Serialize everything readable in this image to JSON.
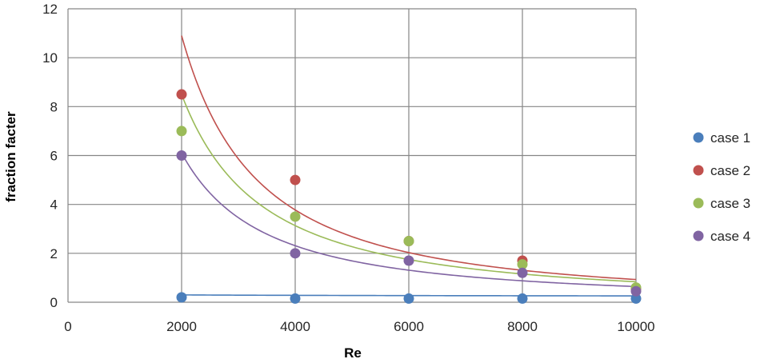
{
  "chart_data": {
    "type": "scatter",
    "title": "",
    "xlabel": "Re",
    "ylabel": "fraction facter",
    "xlim": [
      0,
      10000
    ],
    "ylim": [
      0,
      12
    ],
    "x_ticks": [
      "0",
      "2000",
      "4000",
      "6000",
      "8000",
      "10000"
    ],
    "y_ticks": [
      "0",
      "2",
      "4",
      "6",
      "8",
      "10",
      "12"
    ],
    "grid": "vertical and horizontal",
    "legend_position": "right",
    "x": [
      2000,
      4000,
      6000,
      8000,
      10000
    ],
    "series": [
      {
        "name": "case 1",
        "color": "#4A7EBB",
        "values": [
          0.2,
          0.15,
          0.15,
          0.15,
          0.15
        ],
        "trendline": {
          "type": "power",
          "a": 0.3,
          "b": -0.09,
          "from": 2000,
          "to": 10000
        }
      },
      {
        "name": "case 2",
        "color": "#C0504D",
        "values": [
          8.5,
          5.0,
          2.5,
          1.7,
          0.55
        ],
        "trendline": {
          "type": "power",
          "a": 10.9,
          "b": -1.53,
          "from": 2000,
          "to": 10000
        }
      },
      {
        "name": "case 3",
        "color": "#9BBB59",
        "values": [
          7.0,
          3.5,
          2.5,
          1.55,
          0.6
        ],
        "trendline": {
          "type": "power",
          "a": 8.5,
          "b": -1.44,
          "from": 2000,
          "to": 10000
        }
      },
      {
        "name": "case 4",
        "color": "#8064A2",
        "values": [
          6.0,
          2.0,
          1.7,
          1.2,
          0.45
        ],
        "trendline": {
          "type": "power",
          "a": 6.1,
          "b": -1.4,
          "from": 2000,
          "to": 10000
        }
      }
    ]
  }
}
